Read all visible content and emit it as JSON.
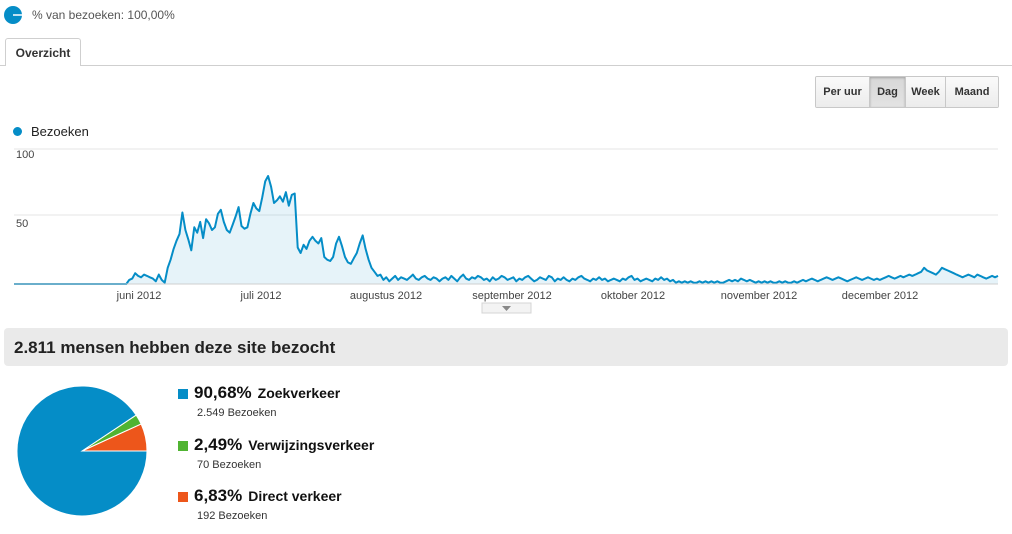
{
  "segment": {
    "label": "% van bezoeken: 100,00%",
    "icon": "segment-pie-icon"
  },
  "tabs": [
    {
      "label": "Overzicht"
    }
  ],
  "granularity": {
    "buttons": [
      "Per uur",
      "Dag",
      "Week",
      "Maand"
    ],
    "active": "Dag"
  },
  "colors": {
    "series": "#058dc7",
    "zoek": "#058dc7",
    "verwijzing": "#50b432",
    "direct": "#ed561b"
  },
  "chart_data": {
    "type": "area",
    "series": [
      {
        "name": "Bezoeken"
      }
    ],
    "ylim": [
      0,
      100
    ],
    "y_ticks": [
      "100",
      "50"
    ],
    "x_ticks": [
      "juni 2012",
      "juli 2012",
      "augustus 2012",
      "september 2012",
      "oktober 2012",
      "november 2012",
      "december 2012"
    ],
    "values": [
      0,
      0,
      0,
      0,
      0,
      0,
      0,
      0,
      0,
      0,
      0,
      0,
      0,
      0,
      0,
      0,
      0,
      0,
      0,
      0,
      0,
      0,
      0,
      0,
      0,
      0,
      0,
      0,
      0,
      0,
      0,
      0,
      0,
      0,
      0,
      0,
      0,
      0,
      0,
      3,
      4,
      8,
      6,
      5,
      7,
      6,
      5,
      4,
      2,
      7,
      3,
      1,
      12,
      18,
      26,
      32,
      37,
      53,
      40,
      33,
      25,
      42,
      38,
      46,
      34,
      48,
      45,
      40,
      42,
      52,
      55,
      46,
      40,
      38,
      44,
      50,
      57,
      43,
      41,
      42,
      52,
      60,
      56,
      54,
      64,
      76,
      80,
      72,
      60,
      62,
      65,
      61,
      68,
      58,
      66,
      67,
      27,
      23,
      29,
      26,
      32,
      35,
      32,
      30,
      34,
      20,
      18,
      17,
      20,
      30,
      35,
      28,
      20,
      16,
      15,
      19,
      23,
      30,
      36,
      26,
      18,
      12,
      9,
      6,
      7,
      3,
      5,
      2,
      4,
      6,
      3,
      5,
      4,
      3,
      5,
      7,
      4,
      3,
      5,
      6,
      4,
      3,
      5,
      4,
      2,
      4,
      5,
      3,
      6,
      4,
      2,
      5,
      7,
      4,
      3,
      5,
      4,
      6,
      5,
      3,
      4,
      2,
      5,
      3,
      4,
      6,
      5,
      3,
      4,
      5,
      2,
      4,
      3,
      5,
      6,
      4,
      2,
      3,
      5,
      4,
      3,
      6,
      5,
      2,
      4,
      3,
      5,
      3,
      2,
      4,
      3,
      5,
      6,
      4,
      3,
      2,
      4,
      3,
      5,
      3,
      4,
      2,
      3,
      4,
      3,
      2,
      4,
      3,
      5,
      6,
      3,
      4,
      2,
      3,
      4,
      3,
      2,
      4,
      3,
      5,
      3,
      4,
      2,
      3,
      1,
      2,
      1,
      2,
      1,
      2,
      1,
      1,
      2,
      1,
      2,
      1,
      2,
      1,
      2,
      1,
      1,
      2,
      3,
      2,
      3,
      2,
      4,
      3,
      2,
      3,
      2,
      1,
      2,
      1,
      2,
      1,
      2,
      1,
      1,
      2,
      1,
      2,
      1,
      1,
      2,
      1,
      2,
      3,
      2,
      3,
      4,
      3,
      2,
      3,
      4,
      5,
      4,
      3,
      4,
      5,
      4,
      3,
      2,
      3,
      4,
      5,
      4,
      3,
      4,
      5,
      4,
      3,
      4,
      3,
      4,
      5,
      6,
      5,
      4,
      5,
      6,
      5,
      6,
      7,
      6,
      7,
      8,
      9,
      12,
      10,
      9,
      8,
      7,
      9,
      12,
      11,
      10,
      9,
      8,
      7,
      6,
      5,
      6,
      7,
      6,
      5,
      7,
      6,
      5,
      4,
      5,
      6,
      5,
      6
    ]
  },
  "summary": {
    "headline": "2.811 mensen hebben deze site bezocht"
  },
  "pie_data": {
    "type": "pie",
    "slices": [
      {
        "pct_label": "90,68%",
        "name": "Zoekverkeer",
        "visits": "2.549 Bezoeken",
        "value": 90.68
      },
      {
        "pct_label": "2,49%",
        "name": "Verwijzingsverkeer",
        "visits": "70 Bezoeken",
        "value": 2.49
      },
      {
        "pct_label": "6,83%",
        "name": "Direct verkeer",
        "visits": "192 Bezoeken",
        "value": 6.83
      }
    ]
  }
}
